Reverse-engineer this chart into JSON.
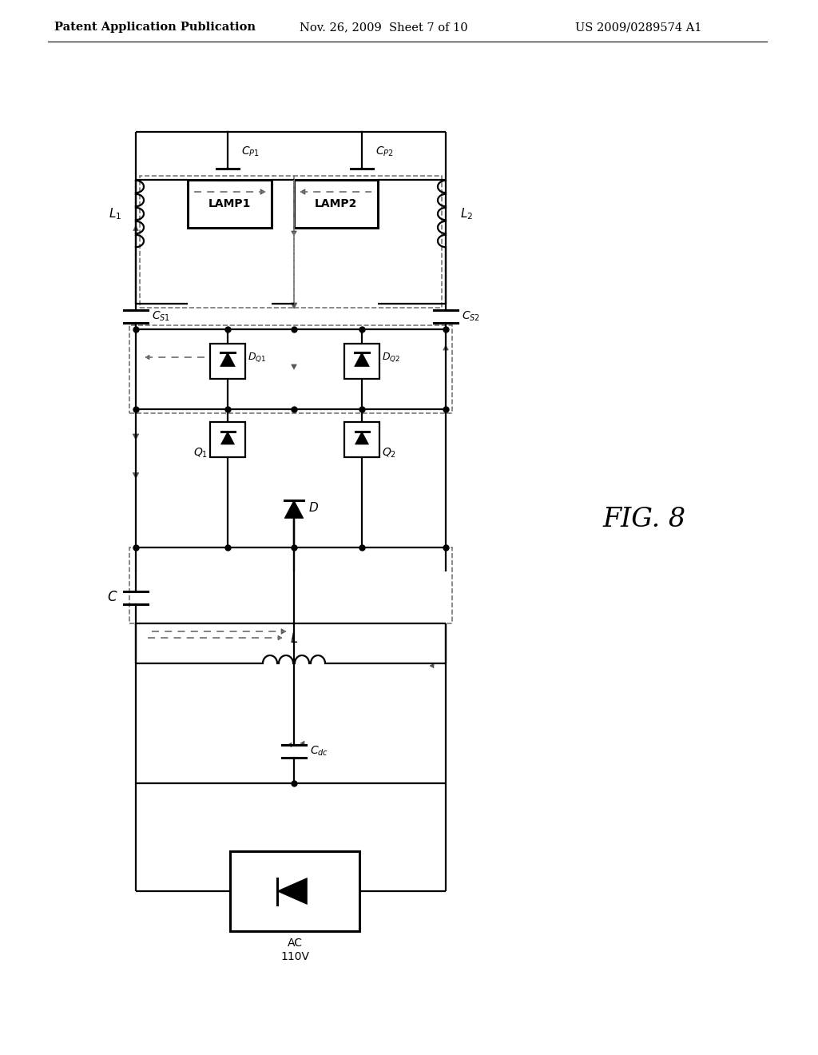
{
  "bg_color": "#ffffff",
  "line_color": "#000000",
  "header_left": "Patent Application Publication",
  "header_mid": "Nov. 26, 2009  Sheet 7 of 10",
  "header_right": "US 2009/0289574 A1",
  "fig_label": "FIG. 8"
}
